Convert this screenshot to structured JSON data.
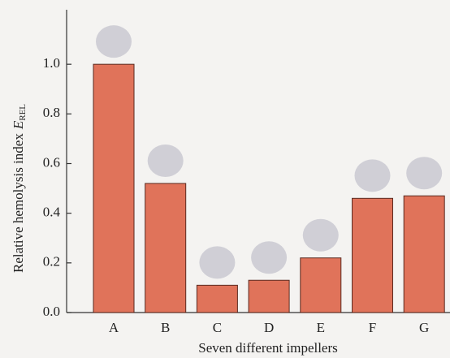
{
  "chart_data": {
    "type": "bar",
    "y_label": "Relative hemolysis index",
    "y_label_symbol": "E",
    "y_label_subscript": "REL",
    "x_label": "Seven different impellers",
    "categories": [
      "A",
      "B",
      "C",
      "D",
      "E",
      "F",
      "G"
    ],
    "values": [
      1.0,
      0.52,
      0.11,
      0.13,
      0.22,
      0.46,
      0.47
    ],
    "color": "#e0735a",
    "ylim": [
      0,
      1.2
    ],
    "yticks": [
      {
        "value": 0,
        "label": "0.0"
      },
      0.2,
      0.4,
      0.6,
      0.8,
      {
        "value": 1,
        "label": "1.0"
      }
    ],
    "grid": false
  }
}
